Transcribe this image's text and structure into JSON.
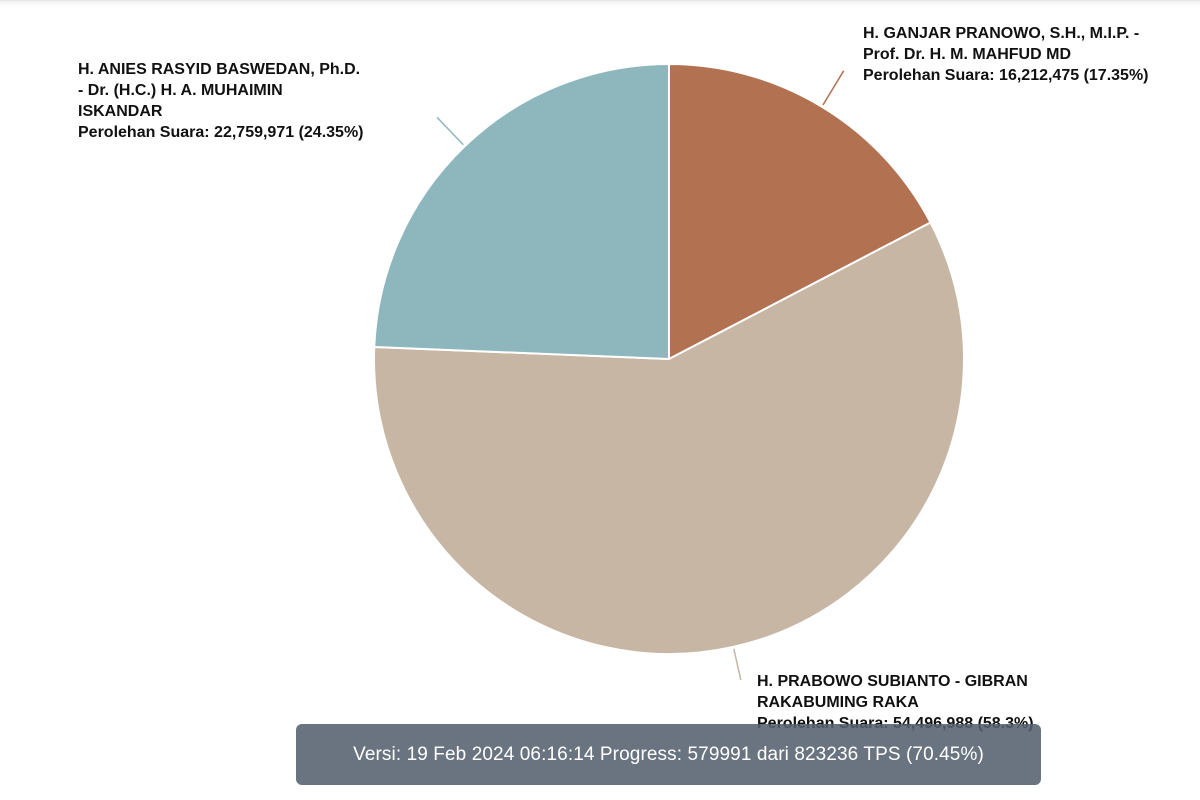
{
  "chart_data": {
    "type": "pie",
    "slices": [
      {
        "name_lines": [
          "H. GANJAR PRANOWO, S.H., M.I.P. -",
          "Prof. Dr. H. M. MAHFUD MD"
        ],
        "value_text": "Perolehan Suara: 16,212,475 (17.35%)",
        "value": 16212475,
        "percent": 17.35,
        "color": "#b27251"
      },
      {
        "name_lines": [
          "H. PRABOWO SUBIANTO - GIBRAN",
          "RAKABUMING RAKA"
        ],
        "value_text": "Perolehan Suara: 54,496,988 (58.3%)",
        "value": 54496988,
        "percent": 58.3,
        "color": "#c7b6a3"
      },
      {
        "name_lines": [
          "H. ANIES RASYID BASWEDAN, Ph.D.",
          "- Dr. (H.C.) H. A. MUHAIMIN",
          "ISKANDAR"
        ],
        "value_text": "Perolehan Suara: 22,759,971 (24.35%)",
        "value": 22759971,
        "percent": 24.35,
        "color": "#8eb7bd"
      }
    ]
  },
  "footer": {
    "version_text": "Versi: 19 Feb 2024 06:16:14 Progress: 579991 dari 823236 TPS (70.45%)"
  }
}
